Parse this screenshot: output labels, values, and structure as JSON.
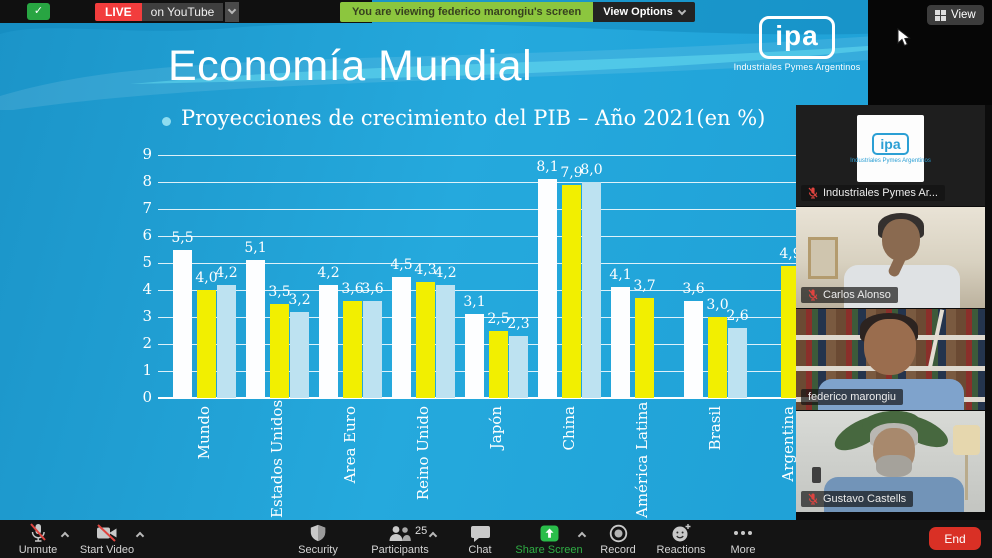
{
  "stream_bar": {
    "live": "LIVE",
    "platform": "on YouTube"
  },
  "viewing_banner": {
    "text": "You are viewing federico marongiu's screen",
    "view_options": "View Options"
  },
  "view_button": "View",
  "slide": {
    "title": "Economía Mundial",
    "subtitle": "Proyecciones de crecimiento del PIB – Año 2021(en %)",
    "logo_text": "ipa",
    "logo_caption": "Industriales Pymes Argentinos"
  },
  "chart_data": {
    "type": "bar",
    "title": "Proyecciones de crecimiento del PIB – Año 2021(en %)",
    "categories": [
      "Mundo",
      "Estados Unidos",
      "Area Euro",
      "Reino Unido",
      "Japón",
      "China",
      "América Latina",
      "Brasil",
      "Argentina"
    ],
    "series": [
      {
        "name": "bars-white",
        "color": "#fdfeff",
        "values": [
          5.5,
          5.1,
          4.2,
          4.5,
          3.1,
          8.1,
          4.1,
          3.6,
          null
        ]
      },
      {
        "name": "bars-yellow",
        "color": "#f2ef00",
        "values": [
          4.0,
          3.5,
          3.6,
          4.3,
          2.5,
          7.9,
          3.7,
          3.0,
          4.9
        ]
      },
      {
        "name": "bars-lightblue",
        "color": "#bde2f1",
        "values": [
          4.2,
          3.2,
          3.6,
          4.2,
          2.3,
          8.0,
          null,
          2.6,
          null
        ]
      }
    ],
    "ylim": [
      0,
      9
    ],
    "yticks": [
      0,
      1,
      2,
      3,
      4,
      5,
      6,
      7,
      8,
      9
    ],
    "grid": true,
    "legend": "none",
    "decimal_separator": ","
  },
  "participants": [
    {
      "name": "Industriales Pymes Ar...",
      "muted": true,
      "scene": "logo"
    },
    {
      "name": "Carlos Alonso",
      "muted": true,
      "scene": "beige-room"
    },
    {
      "name": "federico marongiu",
      "muted": false,
      "scene": "bookshelf"
    },
    {
      "name": "Gustavo Castells",
      "muted": true,
      "scene": "plant-room"
    }
  ],
  "toolbar": {
    "items": [
      {
        "id": "unmute",
        "label": "Unmute",
        "caret": true
      },
      {
        "id": "start-video",
        "label": "Start Video",
        "caret": true
      },
      {
        "id": "security",
        "label": "Security"
      },
      {
        "id": "participants",
        "label": "Participants",
        "count": "25",
        "caret": true
      },
      {
        "id": "chat",
        "label": "Chat"
      },
      {
        "id": "share-screen",
        "label": "Share Screen",
        "caret": true,
        "accent": true
      },
      {
        "id": "record",
        "label": "Record"
      },
      {
        "id": "reactions",
        "label": "Reactions"
      },
      {
        "id": "more",
        "label": "More"
      }
    ],
    "end": "End"
  }
}
